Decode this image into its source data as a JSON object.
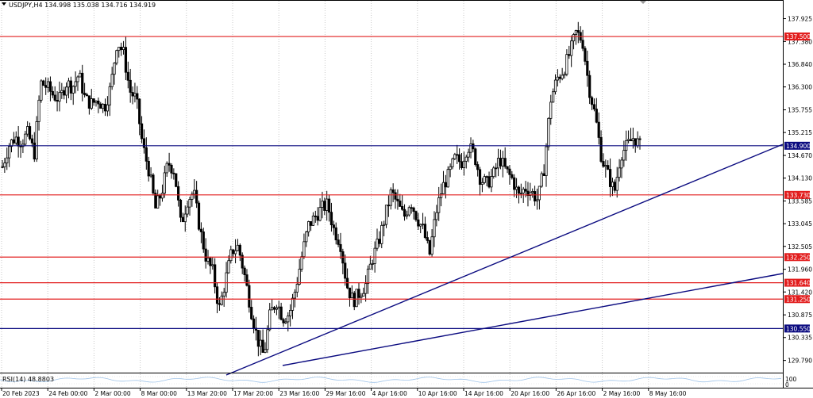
{
  "header": {
    "symbol_info": "USDJPY,H4  134.998 135.038 134.716 134.919"
  },
  "indicator": {
    "label": "RSI(14) 48.8803",
    "scale_top": "100",
    "scale_bottom": "0"
  },
  "chart_data": {
    "type": "candlestick",
    "symbol": "USDJPY",
    "timeframe": "H4",
    "ohlc": {
      "open": 134.998,
      "high": 135.038,
      "low": 134.716,
      "close": 134.919
    },
    "ylim": [
      129.5,
      138.35
    ],
    "price_ticks": [
      "137.925",
      "137.380",
      "136.840",
      "136.300",
      "135.755",
      "135.215",
      "134.670",
      "134.130",
      "133.585",
      "133.045",
      "132.505",
      "131.960",
      "131.420",
      "130.875",
      "130.335",
      "129.790"
    ],
    "time_labels": [
      "20 Feb 2023",
      "24 Feb 00:00",
      "2 Mar 00:00",
      "8 Mar 00:00",
      "13 Mar 20:00",
      "17 Mar 20:00",
      "23 Mar 16:00",
      "29 Mar 16:00",
      "4 Apr 16:00",
      "10 Apr 16:00",
      "14 Apr 16:00",
      "20 Apr 16:00",
      "26 Apr 16:00",
      "2 May 16:00",
      "8 May 16:00"
    ],
    "price_path": [
      134.4,
      134.9,
      135.1,
      135.0,
      135.2,
      134.7,
      136.4,
      136.3,
      136.1,
      136.0,
      136.4,
      136.3,
      136.6,
      136.0,
      135.9,
      136.0,
      135.8,
      136.3,
      137.4,
      137.1,
      136.2,
      136.0,
      134.9,
      134.3,
      133.4,
      133.8,
      134.5,
      134.3,
      133.0,
      133.6,
      133.8,
      132.9,
      132.2,
      131.9,
      131.0,
      131.7,
      132.4,
      132.5,
      131.8,
      131.0,
      130.3,
      129.9,
      130.9,
      131.2,
      130.8,
      130.9,
      131.5,
      132.3,
      133.0,
      133.2,
      133.4,
      133.5,
      132.9,
      132.6,
      131.6,
      131.2,
      131.4,
      131.6,
      132.2,
      132.6,
      133.2,
      133.8,
      133.5,
      133.2,
      133.6,
      133.2,
      132.9,
      132.3,
      133.3,
      133.9,
      134.2,
      134.6,
      134.5,
      134.9,
      134.7,
      134.1,
      134.0,
      134.2,
      134.6,
      134.3,
      134.1,
      133.7,
      133.9,
      133.8,
      133.6,
      134.4,
      136.0,
      136.5,
      136.7,
      137.1,
      137.6,
      137.4,
      136.3,
      135.6,
      134.6,
      134.2,
      133.8,
      134.7,
      134.9,
      135.1,
      134.9
    ]
  },
  "levels": [
    {
      "price": 137.5,
      "label": "137.500",
      "color": "#e21d1d"
    },
    {
      "price": 134.9,
      "label": "134.900",
      "color": "#0b0b80"
    },
    {
      "price": 133.73,
      "label": "133.730",
      "color": "#e21d1d"
    },
    {
      "price": 132.25,
      "label": "132.250",
      "color": "#e21d1d"
    },
    {
      "price": 131.64,
      "label": "131.640",
      "color": "#e21d1d"
    },
    {
      "price": 131.25,
      "label": "131.250",
      "color": "#e21d1d"
    },
    {
      "price": 130.55,
      "label": "130.550",
      "color": "#0b0b80"
    }
  ],
  "colors": {
    "background": "#ffffff",
    "candles": "#000000",
    "grid": "#c8c8c8",
    "support_line": "#0b0b80",
    "resistance_line": "#e21d1d",
    "rsi_line": "#9fc3e8"
  }
}
